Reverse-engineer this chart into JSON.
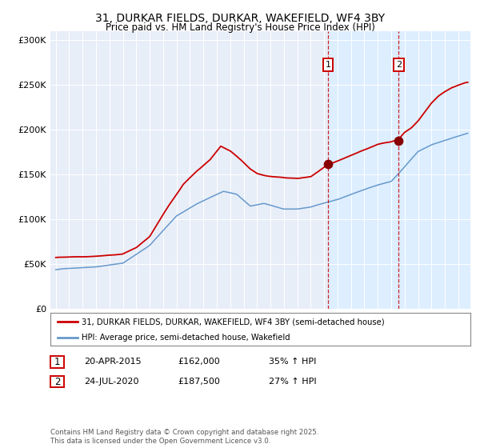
{
  "title_line1": "31, DURKAR FIELDS, DURKAR, WAKEFIELD, WF4 3BY",
  "title_line2": "Price paid vs. HM Land Registry's House Price Index (HPI)",
  "legend_line1": "31, DURKAR FIELDS, DURKAR, WAKEFIELD, WF4 3BY (semi-detached house)",
  "legend_line2": "HPI: Average price, semi-detached house, Wakefield",
  "sale1_date": "20-APR-2015",
  "sale1_price": "£162,000",
  "sale1_hpi": "35% ↑ HPI",
  "sale2_date": "24-JUL-2020",
  "sale2_price": "£187,500",
  "sale2_hpi": "27% ↑ HPI",
  "footer": "Contains HM Land Registry data © Crown copyright and database right 2025.\nThis data is licensed under the Open Government Licence v3.0.",
  "red_color": "#cc0000",
  "blue_color": "#6699cc",
  "shaded_color": "#ddeeff",
  "vline_color": "#cc0000",
  "sale1_year": 2015.3,
  "sale2_year": 2020.56,
  "ylim": [
    0,
    310000
  ],
  "yticks": [
    0,
    50000,
    100000,
    150000,
    200000,
    250000,
    300000
  ],
  "ytick_labels": [
    "£0",
    "£50K",
    "£100K",
    "£150K",
    "£200K",
    "£250K",
    "£300K"
  ],
  "background_color": "#e8eef8",
  "xmin": 1994.6,
  "xmax": 2025.9
}
